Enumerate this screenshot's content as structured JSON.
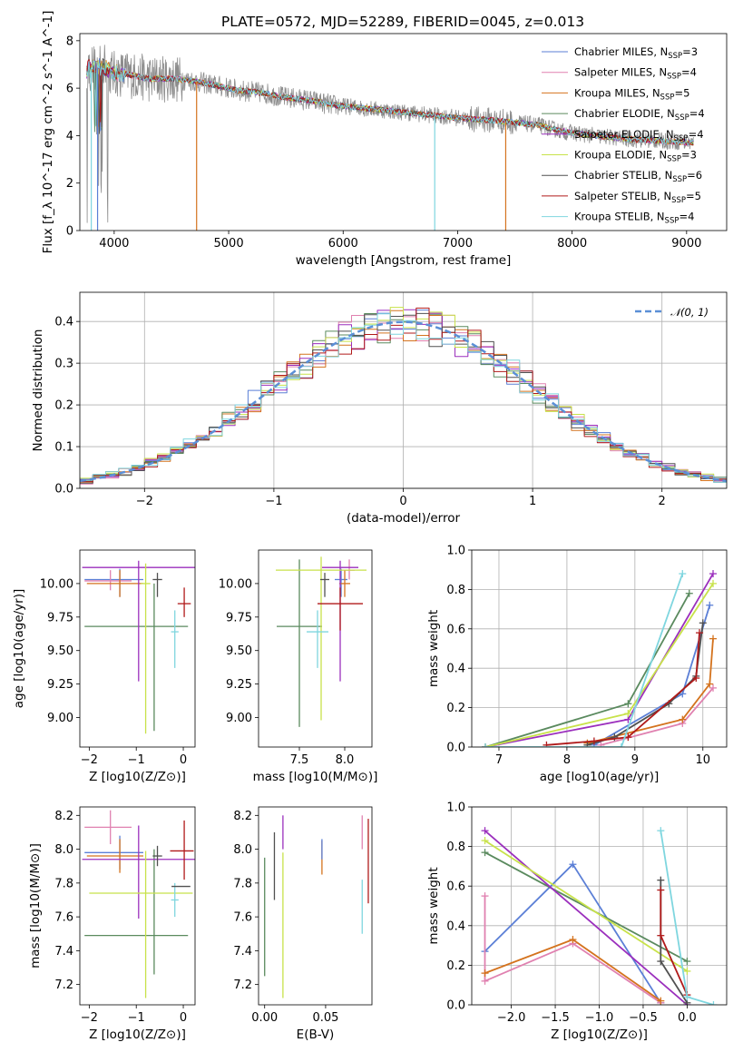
{
  "chart_data": {
    "title": "PLATE=0572, MJD=52289, FIBERID=0045, z=0.013",
    "palette": [
      "#5b7fd6",
      "#e081b0",
      "#d4731e",
      "#5a8a5e",
      "#9b2fbd",
      "#c8e24a",
      "#505050",
      "#b01a1a",
      "#7fd6df"
    ],
    "series_names": [
      "Chabrier MILES, N_SSP=3",
      "Salpeter MILES, N_SSP=4",
      "Kroupa MILES, N_SSP=5",
      "Chabrier ELODIE, N_SSP=4",
      "Salpeter ELODIE, N_SSP=4",
      "Kroupa ELODIE, N_SSP=3",
      "Chabrier STELIB, N_SSP=6",
      "Salpeter STELIB, N_SSP=5",
      "Kroupa STELIB, N_SSP=4"
    ],
    "spectrum": {
      "type": "line",
      "xlabel": "wavelength [Angstrom, rest frame]",
      "ylabel": "Flux [f_λ 10^-17 erg cm^-2 s^-1 A^-1]",
      "xlim": [
        3700,
        9350
      ],
      "ylim": [
        0,
        8.3
      ],
      "xticks": [
        4000,
        5000,
        6000,
        7000,
        8000,
        9000
      ],
      "yticks": [
        0,
        2,
        4,
        6,
        8
      ],
      "continuum": [
        [
          3760,
          6.8
        ],
        [
          3900,
          6.9
        ],
        [
          4000,
          6.6
        ],
        [
          4100,
          6.6
        ],
        [
          4300,
          6.4
        ],
        [
          4500,
          6.4
        ],
        [
          4700,
          6.3
        ],
        [
          4900,
          6.1
        ],
        [
          5100,
          5.9
        ],
        [
          5300,
          5.8
        ],
        [
          5500,
          5.6
        ],
        [
          5700,
          5.5
        ],
        [
          5900,
          5.3
        ],
        [
          6100,
          5.2
        ],
        [
          6300,
          5.1
        ],
        [
          6500,
          5.0
        ],
        [
          6700,
          4.9
        ],
        [
          6900,
          4.8
        ],
        [
          7100,
          4.7
        ],
        [
          7300,
          4.65
        ],
        [
          7500,
          4.55
        ],
        [
          7700,
          4.45
        ],
        [
          7900,
          4.2
        ],
        [
          8100,
          4.05
        ],
        [
          8300,
          3.95
        ],
        [
          8500,
          3.85
        ],
        [
          8700,
          3.8
        ],
        [
          8900,
          3.75
        ],
        [
          9060,
          3.7
        ]
      ],
      "legend_loc": "upper right"
    },
    "residuals": {
      "type": "step",
      "xlabel": "(data-model)/error",
      "ylabel": "Normed distribution",
      "xlim": [
        -2.5,
        2.5
      ],
      "ylim": [
        0,
        0.47
      ],
      "xticks": [
        -2,
        -1,
        0,
        1,
        2
      ],
      "yticks": [
        0.0,
        0.1,
        0.2,
        0.3,
        0.4
      ],
      "bin_width": 0.1,
      "reference": "N(0,1)",
      "legend_loc": "upper right",
      "grid": true
    },
    "age_vs_Z": {
      "type": "errorbar",
      "xlabel": "Z [log10(Z/Z⊙)]",
      "ylabel": "age  [log10(age/yr)]",
      "xlim": [
        -2.2,
        0.25
      ],
      "ylim": [
        8.78,
        10.25
      ],
      "xticks": [
        -2,
        -1,
        0
      ],
      "yticks": [
        9.0,
        9.25,
        9.5,
        9.75,
        10.0
      ],
      "points": [
        {
          "s": 0,
          "x": -1.35,
          "y": 10.03,
          "xerr": [
            0.75,
            0.5
          ],
          "yerr": [
            0.13,
            0.08
          ]
        },
        {
          "s": 1,
          "x": -1.55,
          "y": 10.02,
          "xerr": [
            0.55,
            0.45
          ],
          "yerr": [
            0.07,
            0.08
          ]
        },
        {
          "s": 2,
          "x": -1.35,
          "y": 10.0,
          "xerr": [
            0.7,
            0.5
          ],
          "yerr": [
            0.1,
            0.1
          ]
        },
        {
          "s": 3,
          "x": -1.0,
          "y": 9.68,
          "xerr": [
            1.1,
            1.1
          ],
          "yerr": [
            0.0,
            0.0
          ]
        },
        {
          "s": 3,
          "x": -0.62,
          "y": 9.5,
          "xerr": [
            0.0,
            0.0
          ],
          "yerr": [
            0.6,
            0.5
          ]
        },
        {
          "s": 4,
          "x": -0.95,
          "y": 10.12,
          "xerr": [
            1.2,
            1.2
          ],
          "yerr": [
            0.85,
            0.05
          ]
        },
        {
          "s": 5,
          "x": -0.8,
          "y": 10.0,
          "xerr": [
            0.1,
            0.1
          ],
          "yerr": [
            1.12,
            0.15
          ]
        },
        {
          "s": 6,
          "x": -0.55,
          "y": 10.03,
          "xerr": [
            0.1,
            0.1
          ],
          "yerr": [
            0.13,
            0.05
          ]
        },
        {
          "s": 7,
          "x": 0.02,
          "y": 9.85,
          "xerr": [
            0.14,
            0.14
          ],
          "yerr": [
            0.1,
            0.12
          ]
        },
        {
          "s": 8,
          "x": -0.18,
          "y": 9.64,
          "xerr": [
            0.08,
            0.08
          ],
          "yerr": [
            0.27,
            0.16
          ]
        }
      ]
    },
    "age_vs_mass": {
      "type": "errorbar",
      "xlabel": "mass [log10(M/M⊙)]",
      "ylabel": "",
      "xlim": [
        7.05,
        8.3
      ],
      "ylim": [
        8.78,
        10.25
      ],
      "xticks": [
        7.5,
        8.0
      ],
      "yticks": [
        9.0,
        9.25,
        9.5,
        9.75,
        10.0
      ],
      "points": [
        {
          "s": 0,
          "x": 7.96,
          "y": 10.03,
          "xerr": [
            0.07,
            0.07
          ],
          "yerr": [
            0.13,
            0.08
          ]
        },
        {
          "s": 1,
          "x": 8.05,
          "y": 10.1,
          "xerr": [
            0.06,
            0.06
          ],
          "yerr": [
            0.07,
            0.08
          ]
        },
        {
          "s": 2,
          "x": 8.0,
          "y": 10.0,
          "xerr": [
            0.06,
            0.06
          ],
          "yerr": [
            0.1,
            0.1
          ]
        },
        {
          "s": 3,
          "x": 7.5,
          "y": 9.68,
          "xerr": [
            0.25,
            0.25
          ],
          "yerr": [
            0.75,
            0.5
          ]
        },
        {
          "s": 4,
          "x": 7.95,
          "y": 10.12,
          "xerr": [
            0.2,
            0.2
          ],
          "yerr": [
            0.85,
            0.05
          ]
        },
        {
          "s": 5,
          "x": 7.74,
          "y": 10.1,
          "xerr": [
            0.5,
            0.5
          ],
          "yerr": [
            1.12,
            0.1
          ]
        },
        {
          "s": 6,
          "x": 7.78,
          "y": 10.03,
          "xerr": [
            0.05,
            0.05
          ],
          "yerr": [
            0.13,
            0.05
          ]
        },
        {
          "s": 7,
          "x": 7.95,
          "y": 9.85,
          "xerr": [
            0.25,
            0.25
          ],
          "yerr": [
            0.2,
            0.12
          ]
        },
        {
          "s": 8,
          "x": 7.7,
          "y": 9.64,
          "xerr": [
            0.12,
            0.12
          ],
          "yerr": [
            0.27,
            0.16
          ]
        }
      ]
    },
    "weight_vs_age": {
      "type": "line",
      "xlabel": "age  [log10(age/yr)]",
      "ylabel": "mass weight",
      "xlim": [
        6.6,
        10.35
      ],
      "ylim": [
        0.0,
        1.0
      ],
      "xticks": [
        7,
        8,
        9,
        10
      ],
      "yticks": [
        0.0,
        0.2,
        0.4,
        0.6,
        0.8,
        1.0
      ],
      "grid": true,
      "lines": [
        {
          "s": 0,
          "x": [
            8.4,
            9.7,
            10.1
          ],
          "y": [
            0.01,
            0.27,
            0.72
          ]
        },
        {
          "s": 1,
          "x": [
            8.5,
            9.7,
            10.15
          ],
          "y": [
            0.01,
            0.12,
            0.3
          ]
        },
        {
          "s": 2,
          "x": [
            8.3,
            9.7,
            10.1,
            10.15
          ],
          "y": [
            0.02,
            0.14,
            0.32,
            0.55
          ]
        },
        {
          "s": 3,
          "x": [
            6.8,
            8.9,
            9.8
          ],
          "y": [
            0.0,
            0.22,
            0.78
          ]
        },
        {
          "s": 4,
          "x": [
            6.8,
            8.9,
            10.15
          ],
          "y": [
            0.0,
            0.14,
            0.88
          ]
        },
        {
          "s": 5,
          "x": [
            6.8,
            8.9,
            10.15
          ],
          "y": [
            0.0,
            0.17,
            0.83
          ]
        },
        {
          "s": 6,
          "x": [
            8.3,
            8.7,
            9.5,
            9.9,
            10.0
          ],
          "y": [
            0.01,
            0.05,
            0.22,
            0.36,
            0.63
          ]
        },
        {
          "s": 7,
          "x": [
            7.7,
            8.4,
            8.9,
            9.9,
            9.95
          ],
          "y": [
            0.01,
            0.03,
            0.05,
            0.35,
            0.58
          ]
        },
        {
          "s": 8,
          "x": [
            6.8,
            8.8,
            9.7
          ],
          "y": [
            0.0,
            0.0,
            0.88
          ]
        }
      ]
    },
    "mass_vs_Z": {
      "type": "errorbar",
      "xlabel": "Z [log10(Z/Z⊙)]",
      "ylabel": "mass [log10(M/M⊙)]",
      "xlim": [
        -2.2,
        0.25
      ],
      "ylim": [
        7.08,
        8.25
      ],
      "xticks": [
        -2,
        -1,
        0
      ],
      "yticks": [
        7.2,
        7.4,
        7.6,
        7.8,
        8.0,
        8.2
      ],
      "points": [
        {
          "s": 0,
          "x": -1.35,
          "y": 7.98,
          "xerr": [
            0.75,
            0.5
          ],
          "yerr": [
            0.1,
            0.1
          ]
        },
        {
          "s": 1,
          "x": -1.55,
          "y": 8.13,
          "xerr": [
            0.55,
            0.45
          ],
          "yerr": [
            0.1,
            0.1
          ]
        },
        {
          "s": 2,
          "x": -1.35,
          "y": 7.96,
          "xerr": [
            0.7,
            0.5
          ],
          "yerr": [
            0.1,
            0.1
          ]
        },
        {
          "s": 3,
          "x": -1.0,
          "y": 7.49,
          "xerr": [
            1.1,
            1.1
          ],
          "yerr": [
            0.0,
            0.0
          ]
        },
        {
          "s": 3,
          "x": -0.62,
          "y": 7.7,
          "xerr": [
            0.0,
            0.0
          ],
          "yerr": [
            0.44,
            0.3
          ]
        },
        {
          "s": 4,
          "x": -0.95,
          "y": 7.94,
          "xerr": [
            1.2,
            1.2
          ],
          "yerr": [
            0.35,
            0.2
          ]
        },
        {
          "s": 5,
          "x": -0.8,
          "y": 7.74,
          "xerr": [
            1.2,
            1.0
          ],
          "yerr": [
            0.62,
            0.25
          ]
        },
        {
          "s": 6,
          "x": -0.55,
          "y": 7.96,
          "xerr": [
            0.1,
            0.1
          ],
          "yerr": [
            0.06,
            0.06
          ]
        },
        {
          "s": 7,
          "x": 0.02,
          "y": 7.99,
          "xerr": [
            0.3,
            0.2
          ],
          "yerr": [
            0.17,
            0.18
          ]
        },
        {
          "s": 8,
          "x": -0.18,
          "y": 7.7,
          "xerr": [
            0.08,
            0.08
          ],
          "yerr": [
            0.1,
            0.1
          ]
        },
        {
          "s": 6,
          "x": -0.05,
          "y": 7.78,
          "xerr": [
            0.2,
            0.2
          ],
          "yerr": [
            0.0,
            0.0
          ]
        }
      ]
    },
    "mass_vs_EBV": {
      "type": "errorbar",
      "xlabel": "E(B-V)",
      "ylabel": "",
      "xlim": [
        -0.005,
        0.088
      ],
      "ylim": [
        7.08,
        8.25
      ],
      "xticks": [
        0.0,
        0.05
      ],
      "yticks": [
        7.2,
        7.4,
        7.6,
        7.8,
        8.0,
        8.2
      ],
      "points": [
        {
          "s": 3,
          "x": 0.0,
          "y": 7.6,
          "yerr": [
            0.35,
            0.35
          ]
        },
        {
          "s": 6,
          "x": 0.008,
          "y": 7.9,
          "yerr": [
            0.2,
            0.2
          ]
        },
        {
          "s": 4,
          "x": 0.015,
          "y": 8.1,
          "yerr": [
            0.1,
            0.1
          ]
        },
        {
          "s": 5,
          "x": 0.015,
          "y": 7.55,
          "yerr": [
            0.43,
            0.43
          ]
        },
        {
          "s": 2,
          "x": 0.047,
          "y": 7.95,
          "yerr": [
            0.1,
            0.1
          ]
        },
        {
          "s": 0,
          "x": 0.047,
          "y": 8.0,
          "yerr": [
            0.06,
            0.06
          ]
        },
        {
          "s": 1,
          "x": 0.08,
          "y": 8.1,
          "yerr": [
            0.1,
            0.1
          ]
        },
        {
          "s": 8,
          "x": 0.08,
          "y": 7.66,
          "yerr": [
            0.16,
            0.16
          ]
        },
        {
          "s": 7,
          "x": 0.085,
          "y": 7.93,
          "yerr": [
            0.25,
            0.25
          ]
        }
      ]
    },
    "weight_vs_Z": {
      "type": "line",
      "xlabel": "Z [log10(Z/Z⊙)]",
      "ylabel": "mass weight",
      "xlim": [
        -2.45,
        0.45
      ],
      "ylim": [
        0.0,
        1.0
      ],
      "xticks": [
        -2.0,
        -1.5,
        -1.0,
        -0.5,
        0.0
      ],
      "yticks": [
        0.0,
        0.2,
        0.4,
        0.6,
        0.8,
        1.0
      ],
      "grid": true,
      "lines": [
        {
          "s": 0,
          "x": [
            -2.3,
            -1.3,
            -0.3
          ],
          "y": [
            0.27,
            0.71,
            0.01
          ]
        },
        {
          "s": 1,
          "x": [
            -2.3,
            -2.3,
            -1.3,
            -0.3
          ],
          "y": [
            0.55,
            0.12,
            0.31,
            0.01
          ]
        },
        {
          "s": 2,
          "x": [
            -2.3,
            -1.3,
            -0.3
          ],
          "y": [
            0.16,
            0.33,
            0.02
          ]
        },
        {
          "s": 3,
          "x": [
            -2.3,
            0.0
          ],
          "y": [
            0.77,
            0.22
          ]
        },
        {
          "s": 4,
          "x": [
            -2.3,
            0.0
          ],
          "y": [
            0.88,
            0.0
          ]
        },
        {
          "s": 5,
          "x": [
            -2.3,
            0.0
          ],
          "y": [
            0.83,
            0.17
          ]
        },
        {
          "s": 6,
          "x": [
            -0.3,
            -0.3,
            0.0
          ],
          "y": [
            0.63,
            0.22,
            0.01
          ]
        },
        {
          "s": 7,
          "x": [
            -0.3,
            -0.3,
            0.0
          ],
          "y": [
            0.58,
            0.35,
            0.05
          ]
        },
        {
          "s": 8,
          "x": [
            -0.3,
            0.0,
            0.3
          ],
          "y": [
            0.88,
            0.04,
            0.0
          ]
        }
      ]
    }
  }
}
